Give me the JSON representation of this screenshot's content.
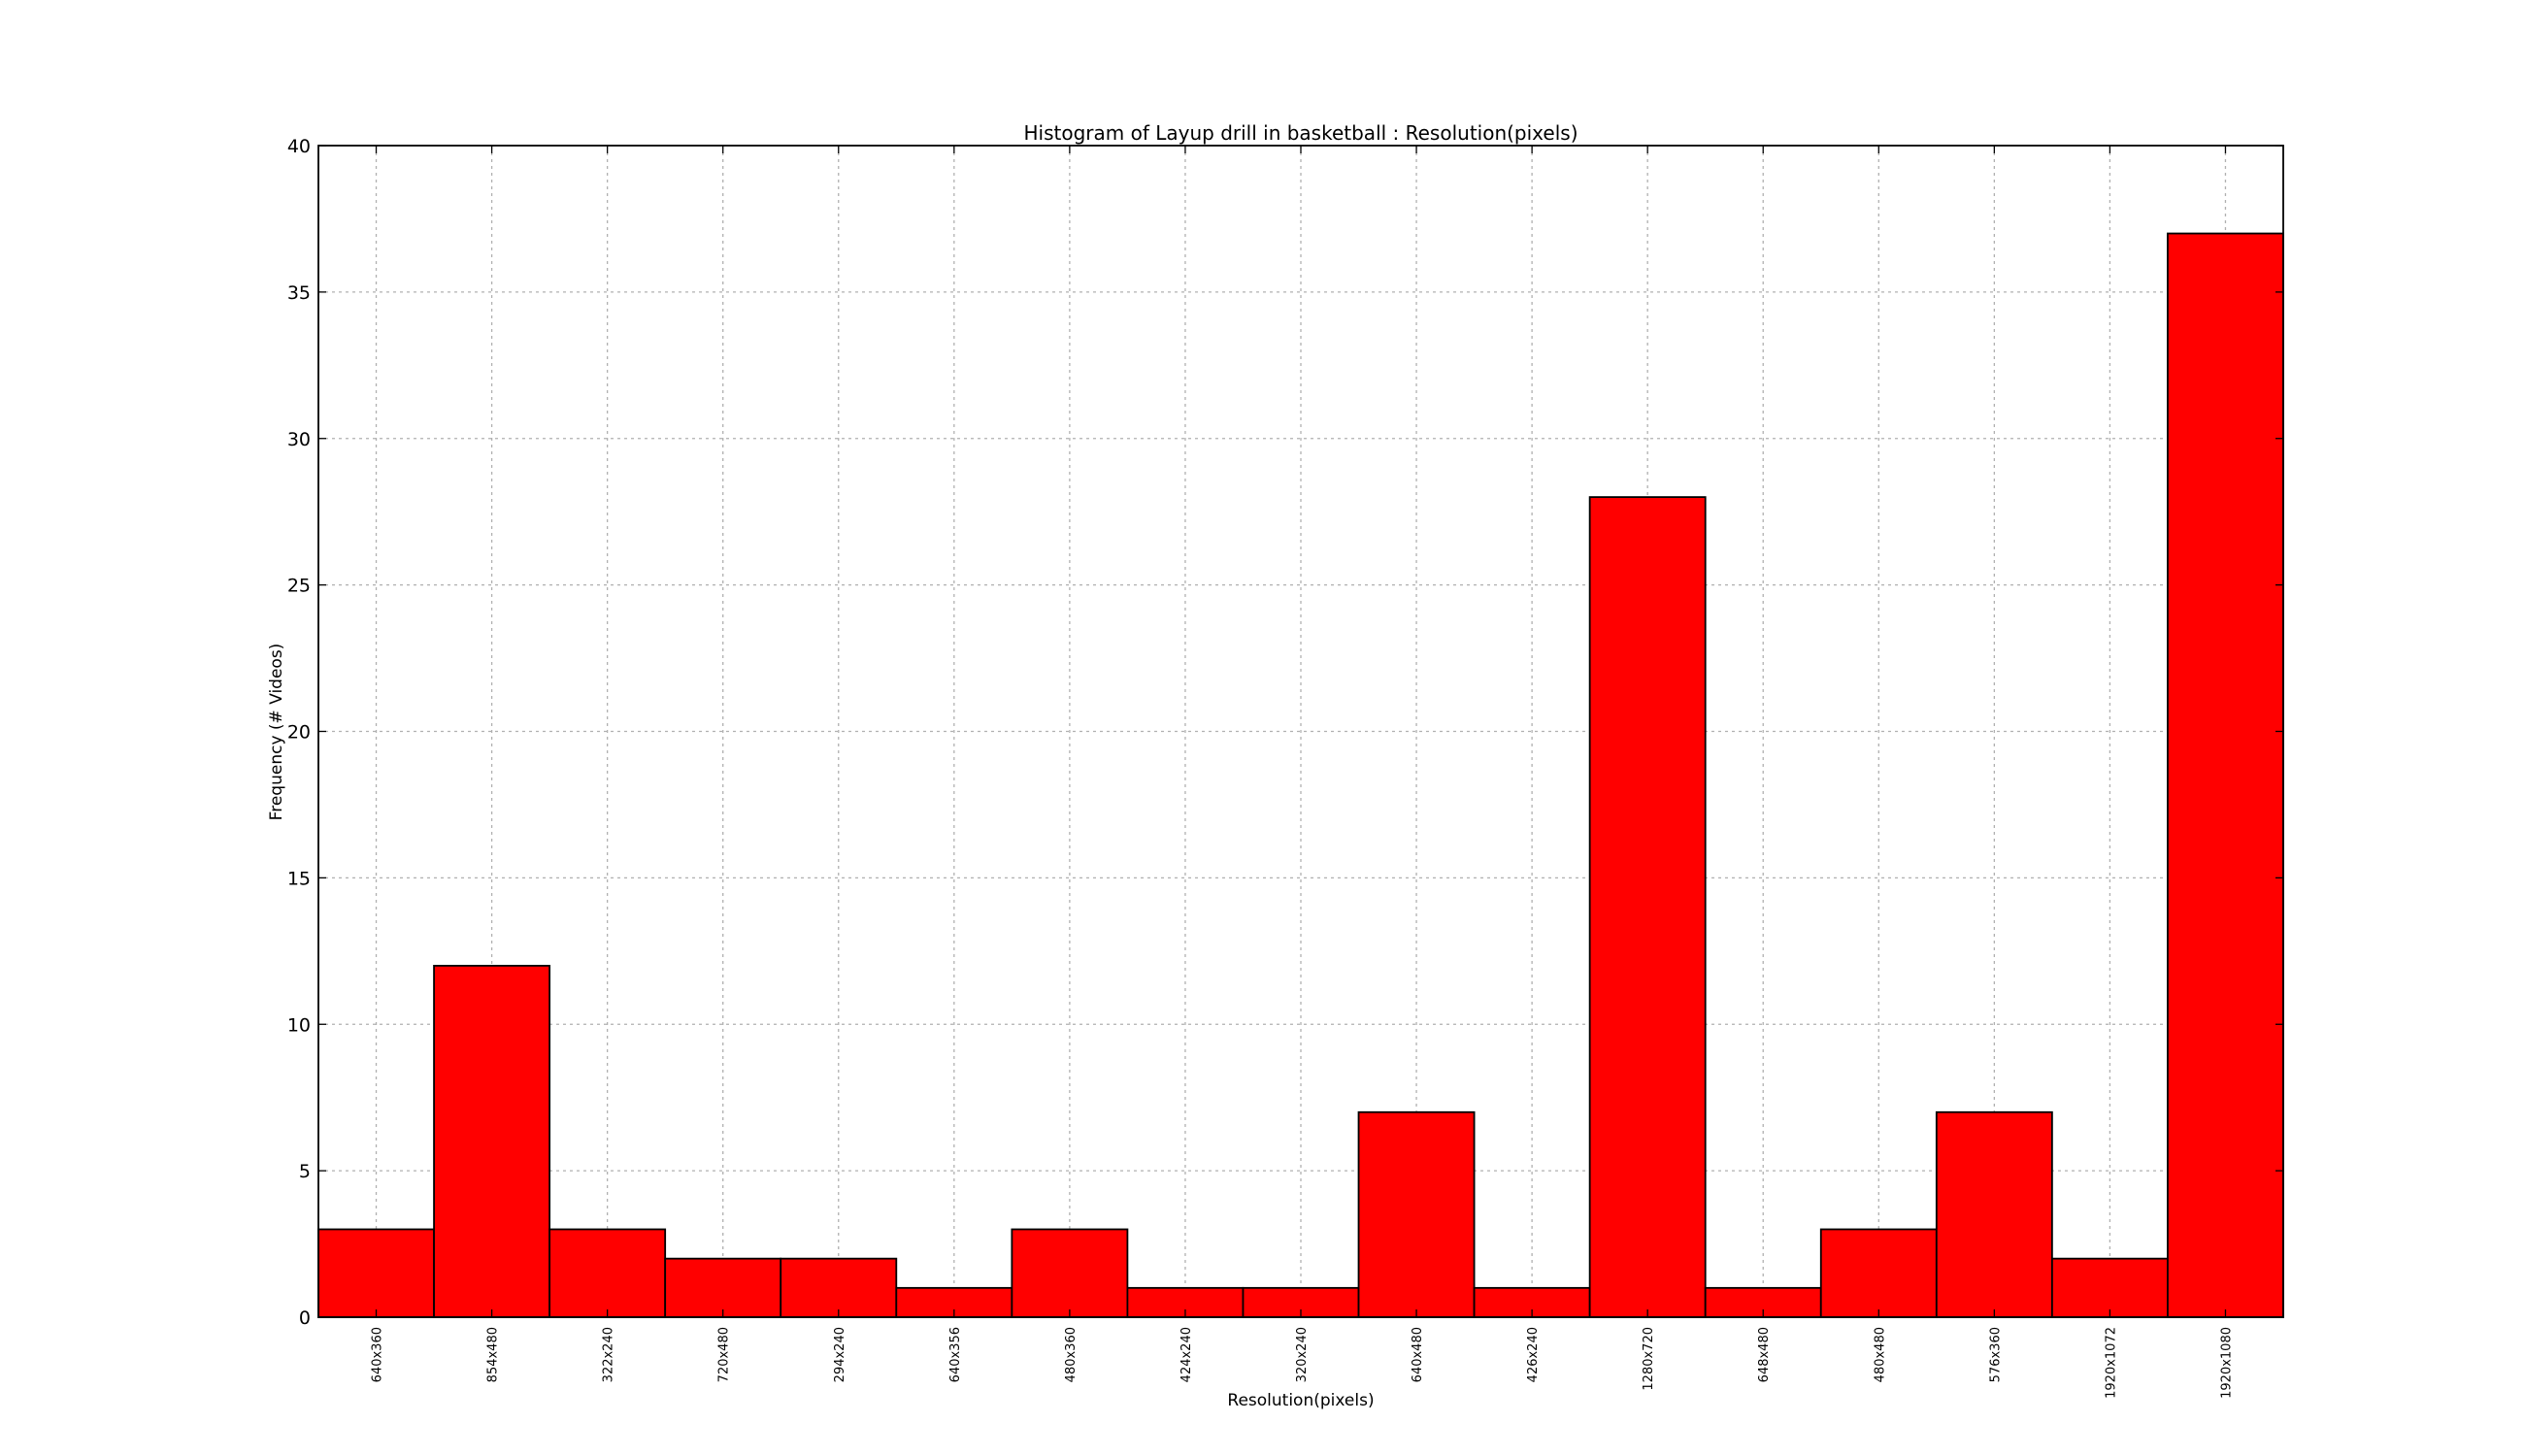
{
  "chart_data": {
    "type": "bar",
    "title": "Histogram of Layup drill in basketball : Resolution(pixels)",
    "xlabel": "Resolution(pixels)",
    "ylabel": "Frequency (# Videos)",
    "categories": [
      "640x360",
      "854x480",
      "322x240",
      "720x480",
      "294x240",
      "640x356",
      "480x360",
      "424x240",
      "320x240",
      "640x480",
      "426x240",
      "1280x720",
      "648x480",
      "480x480",
      "576x360",
      "1920x1072",
      "1920x1080"
    ],
    "values": [
      3,
      12,
      3,
      2,
      2,
      1,
      3,
      1,
      1,
      7,
      1,
      28,
      1,
      3,
      7,
      2,
      37
    ],
    "ylim": [
      0,
      40
    ],
    "yticks": [
      0,
      5,
      10,
      15,
      20,
      25,
      30,
      35,
      40
    ],
    "grid": true,
    "colors": {
      "bar": "#ff0000",
      "edge": "#000000",
      "grid": "#b0b0b0"
    }
  }
}
